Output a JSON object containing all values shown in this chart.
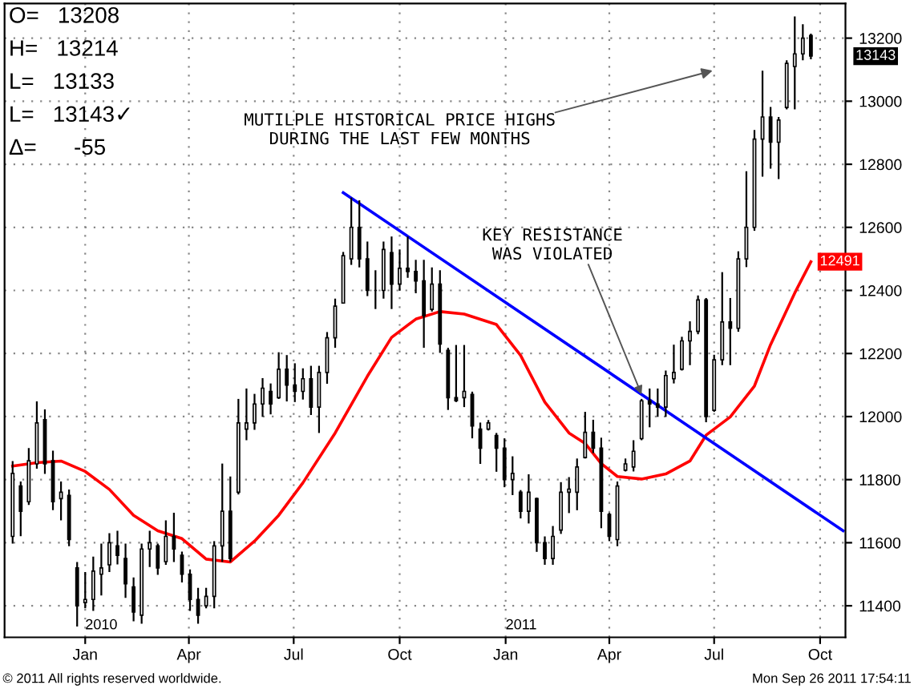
{
  "chart_data": {
    "type": "candlestick",
    "x": [
      "2009-10-30",
      "2009-11-06",
      "2009-11-13",
      "2009-11-20",
      "2009-11-27",
      "2009-12-04",
      "2009-12-11",
      "2009-12-18",
      "2009-12-25",
      "2010-01-01",
      "2010-01-08",
      "2010-01-15",
      "2010-01-22",
      "2010-01-29",
      "2010-02-05",
      "2010-02-12",
      "2010-02-19",
      "2010-02-26",
      "2010-03-05",
      "2010-03-12",
      "2010-03-19",
      "2010-03-26",
      "2010-04-02",
      "2010-04-09",
      "2010-04-16",
      "2010-04-23",
      "2010-04-30",
      "2010-05-07",
      "2010-05-14",
      "2010-05-21",
      "2010-05-28",
      "2010-06-04",
      "2010-06-11",
      "2010-06-18",
      "2010-06-25",
      "2010-07-02",
      "2010-07-09",
      "2010-07-16",
      "2010-07-23",
      "2010-07-30",
      "2010-08-06",
      "2010-08-13",
      "2010-08-20",
      "2010-08-27",
      "2010-09-03",
      "2010-09-10",
      "2010-09-17",
      "2010-09-24",
      "2010-10-01",
      "2010-10-08",
      "2010-10-15",
      "2010-10-22",
      "2010-10-29",
      "2010-11-05",
      "2010-11-12",
      "2010-11-19",
      "2010-11-26",
      "2010-12-03",
      "2010-12-10",
      "2010-12-17",
      "2010-12-24",
      "2010-12-31",
      "2011-01-07",
      "2011-01-14",
      "2011-01-21",
      "2011-01-28",
      "2011-02-04",
      "2011-02-11",
      "2011-02-18",
      "2011-02-25",
      "2011-03-04",
      "2011-03-11",
      "2011-03-18",
      "2011-03-25",
      "2011-04-01",
      "2011-04-08",
      "2011-04-15",
      "2011-04-22",
      "2011-04-29",
      "2011-05-06",
      "2011-05-13",
      "2011-05-20",
      "2011-05-27",
      "2011-06-03",
      "2011-06-10",
      "2011-06-17",
      "2011-06-24",
      "2011-07-01",
      "2011-07-08",
      "2011-07-15",
      "2011-07-22",
      "2011-07-29",
      "2011-08-05",
      "2011-08-12",
      "2011-08-19",
      "2011-08-26",
      "2011-09-02",
      "2011-09-09",
      "2011-09-16",
      "2011-09-23"
    ],
    "ohlc": [
      [
        11620,
        11859,
        11597,
        11820
      ],
      [
        11780,
        11794,
        11621,
        11700
      ],
      [
        11730,
        11900,
        11720,
        11860
      ],
      [
        11850,
        12048,
        11835,
        11980
      ],
      [
        11990,
        12023,
        11818,
        11850
      ],
      [
        11860,
        11892,
        11703,
        11730
      ],
      [
        11740,
        11794,
        11671,
        11760
      ],
      [
        11750,
        11769,
        11589,
        11610
      ],
      [
        11520,
        11539,
        11334,
        11400
      ],
      [
        11410,
        11507,
        11392,
        11420
      ],
      [
        11420,
        11556,
        11384,
        11510
      ],
      [
        11500,
        11597,
        11433,
        11520
      ],
      [
        11530,
        11630,
        11507,
        11600
      ],
      [
        11590,
        11638,
        11531,
        11560
      ],
      [
        11550,
        11597,
        11425,
        11470
      ],
      [
        11460,
        11490,
        11351,
        11380
      ],
      [
        11370,
        11597,
        11343,
        11580
      ],
      [
        11580,
        11638,
        11523,
        11600
      ],
      [
        11590,
        11597,
        11498,
        11520
      ],
      [
        11540,
        11671,
        11530,
        11620
      ],
      [
        11620,
        11695,
        11539,
        11580
      ],
      [
        11560,
        11572,
        11474,
        11500
      ],
      [
        11500,
        11515,
        11384,
        11420
      ],
      [
        11420,
        11457,
        11343,
        11370
      ],
      [
        11400,
        11457,
        11392,
        11430
      ],
      [
        11430,
        11605,
        11392,
        11590
      ],
      [
        11590,
        11851,
        11539,
        11700
      ],
      [
        11700,
        11810,
        11539,
        11550
      ],
      [
        11760,
        12056,
        11753,
        11980
      ],
      [
        11960,
        12089,
        11925,
        11980
      ],
      [
        11980,
        12072,
        11958,
        12040
      ],
      [
        12040,
        12122,
        11999,
        12090
      ],
      [
        12080,
        12105,
        12007,
        12040
      ],
      [
        12060,
        12204,
        12056,
        12150
      ],
      [
        12150,
        12195,
        12048,
        12100
      ],
      [
        12100,
        12169,
        12046,
        12080
      ],
      [
        12080,
        12153,
        12054,
        12120
      ],
      [
        12120,
        12161,
        12005,
        12030
      ],
      [
        12030,
        12161,
        11948,
        12140
      ],
      [
        12140,
        12268,
        12104,
        12250
      ],
      [
        12250,
        12374,
        12218,
        12350
      ],
      [
        12360,
        12522,
        12358,
        12510
      ],
      [
        12500,
        12694,
        12481,
        12600
      ],
      [
        12600,
        12686,
        12473,
        12500
      ],
      [
        12500,
        12555,
        12382,
        12400
      ],
      [
        12400,
        12464,
        12341,
        12400
      ],
      [
        12400,
        12555,
        12374,
        12530
      ],
      [
        12520,
        12571,
        12341,
        12420
      ],
      [
        12420,
        12530,
        12399,
        12470
      ],
      [
        12470,
        12571,
        12440,
        12460
      ],
      [
        12460,
        12497,
        12391,
        12430
      ],
      [
        12430,
        12497,
        12218,
        12320
      ],
      [
        12340,
        12473,
        12333,
        12420
      ],
      [
        12420,
        12464,
        12202,
        12230
      ],
      [
        12210,
        12218,
        12021,
        12060
      ],
      [
        12060,
        12227,
        12046,
        12050
      ],
      [
        12060,
        12227,
        12030,
        12080
      ],
      [
        12070,
        12079,
        11931,
        11970
      ],
      [
        11960,
        11981,
        11850,
        11900
      ],
      [
        11960,
        11989,
        11956,
        11980
      ],
      [
        11940,
        11948,
        11825,
        11900
      ],
      [
        11900,
        11931,
        11776,
        11800
      ],
      [
        11800,
        11874,
        11751,
        11820
      ],
      [
        11760,
        11767,
        11677,
        11700
      ],
      [
        11700,
        11817,
        11661,
        11760
      ],
      [
        11740,
        11743,
        11571,
        11600
      ],
      [
        11600,
        11620,
        11530,
        11550
      ],
      [
        11550,
        11653,
        11530,
        11620
      ],
      [
        11640,
        11792,
        11628,
        11760
      ],
      [
        11760,
        11808,
        11694,
        11770
      ],
      [
        11760,
        11867,
        11703,
        11840
      ],
      [
        11870,
        12015,
        11867,
        11950
      ],
      [
        11950,
        11990,
        11884,
        11900
      ],
      [
        11900,
        11933,
        11646,
        11700
      ],
      [
        11690,
        11695,
        11605,
        11620
      ],
      [
        11610,
        11794,
        11589,
        11780
      ],
      [
        11830,
        11867,
        11826,
        11850
      ],
      [
        11840,
        11925,
        11826,
        11890
      ],
      [
        11930,
        12056,
        11925,
        12050
      ],
      [
        12050,
        12089,
        11966,
        12040
      ],
      [
        12040,
        12089,
        11999,
        12030
      ],
      [
        12030,
        12146,
        11999,
        12130
      ],
      [
        12120,
        12228,
        12105,
        12140
      ],
      [
        12150,
        12253,
        12146,
        12240
      ],
      [
        12240,
        12302,
        12163,
        12270
      ],
      [
        12270,
        12384,
        12261,
        12370
      ],
      [
        12370,
        12376,
        11982,
        12000
      ],
      [
        12020,
        12196,
        12015,
        12180
      ],
      [
        12180,
        12458,
        12163,
        12300
      ],
      [
        12300,
        12376,
        12163,
        12280
      ],
      [
        12280,
        12524,
        12269,
        12500
      ],
      [
        12500,
        12778,
        12474,
        12600
      ],
      [
        12600,
        12909,
        12589,
        12880
      ],
      [
        12880,
        13097,
        12761,
        12950
      ],
      [
        12950,
        12982,
        12786,
        12870
      ],
      [
        12870,
        12950,
        12753,
        12940
      ],
      [
        12980,
        13130,
        12974,
        13120
      ],
      [
        13110,
        13269,
        12974,
        13150
      ],
      [
        13150,
        13244,
        13130,
        13200
      ],
      [
        13208,
        13214,
        13133,
        13143
      ]
    ],
    "color": "#000000",
    "value_labels": [
      null,
      null,
      null,
      null,
      null,
      null,
      null,
      null,
      null,
      null,
      null,
      null,
      null,
      null,
      null,
      null,
      null,
      null,
      null,
      null,
      null,
      null,
      null,
      null,
      null,
      null,
      null,
      null,
      null,
      null,
      null,
      null,
      null,
      null,
      null,
      null,
      null,
      null,
      null,
      null,
      null,
      null,
      null,
      null,
      null,
      null,
      null,
      null,
      null,
      null,
      null,
      null,
      null,
      null,
      null,
      null,
      null,
      null,
      null,
      null,
      null,
      null,
      null,
      null,
      null,
      null,
      null,
      null,
      null,
      null,
      null,
      null,
      null,
      null,
      null,
      null,
      null,
      null,
      null,
      null,
      null,
      null,
      null,
      null,
      null,
      null,
      null,
      null,
      null,
      null,
      null,
      null,
      null,
      null,
      null,
      null,
      null,
      null,
      null,
      "13143"
    ],
    "series": [
      {
        "type": "line",
        "color": "#ff0000",
        "x": [
          "2009-10-30",
          "2009-11-20",
          "2009-12-11",
          "2010-01-01",
          "2010-01-22",
          "2010-02-12",
          "2010-03-05",
          "2010-03-26",
          "2010-04-16",
          "2010-05-07",
          "2010-05-28",
          "2010-06-18",
          "2010-07-09",
          "2010-08-06",
          "2010-09-03",
          "2010-09-24",
          "2010-10-15",
          "2010-11-05",
          "2010-11-26",
          "2010-12-24",
          "2011-01-14",
          "2011-02-04",
          "2011-02-25",
          "2011-03-11",
          "2011-03-25",
          "2011-04-08",
          "2011-04-29",
          "2011-05-20",
          "2011-06-10",
          "2011-06-24",
          "2011-07-15",
          "2011-08-05",
          "2011-08-19",
          "2011-09-09",
          "2011-09-23"
        ],
        "values": [
          11843,
          11854,
          11859,
          11826,
          11769,
          11687,
          11638,
          11613,
          11548,
          11539,
          11605,
          11687,
          11790,
          11948,
          12128,
          12251,
          12309,
          12333,
          12325,
          12292,
          12194,
          12046,
          11948,
          11915,
          11851,
          11810,
          11802,
          11818,
          11859,
          11941,
          11999,
          12097,
          12228,
          12392,
          12491
        ],
        "value_labels": [
          null,
          null,
          null,
          null,
          null,
          null,
          null,
          null,
          null,
          null,
          null,
          null,
          null,
          null,
          null,
          null,
          null,
          null,
          null,
          null,
          null,
          null,
          null,
          null,
          null,
          null,
          null,
          null,
          null,
          null,
          null,
          null,
          null,
          null,
          "12491"
        ]
      },
      {
        "type": "line",
        "color": "#0000ff",
        "x": [
          "2010-08-13",
          "2011-10-21"
        ],
        "values": [
          12710,
          11638
        ]
      }
    ],
    "xlim": [
      "2009-10-23",
      "2011-10-23"
    ],
    "xticks": [
      {
        "value": "2010-01-01",
        "label": "Jan"
      },
      {
        "value": "2010-04-01",
        "label": "Apr"
      },
      {
        "value": "2010-07-01",
        "label": "Jul"
      },
      {
        "value": "2010-10-01",
        "label": "Oct"
      },
      {
        "value": "2011-01-01",
        "label": "Jan"
      },
      {
        "value": "2011-04-01",
        "label": "Apr"
      },
      {
        "value": "2011-07-01",
        "label": "Jul"
      },
      {
        "value": "2011-10-01",
        "label": "Oct"
      }
    ],
    "ylim": [
      11300,
      13310
    ],
    "yticks": [
      11400,
      11600,
      11800,
      12000,
      12200,
      12400,
      12600,
      12800,
      13000,
      13200
    ],
    "grid": true,
    "annotations": [
      "O=   13208",
      "H=   13214",
      "L=   13133",
      "L=   13143✓",
      "Δ=      -55",
      "2010",
      "2011",
      "MUTILPLE HISTORICAL PRICE HIGHS\nDURING THE LAST FEW MONTHS",
      {
        "text": "KEY RESISTANCE\nWAS VIOLATED",
        "x": "2011-04-29",
        "y": 12070
      },
      "© 2011 All rights reserved worldwide.",
      "Mon Sep 26 2011 17:54:11"
    ]
  }
}
